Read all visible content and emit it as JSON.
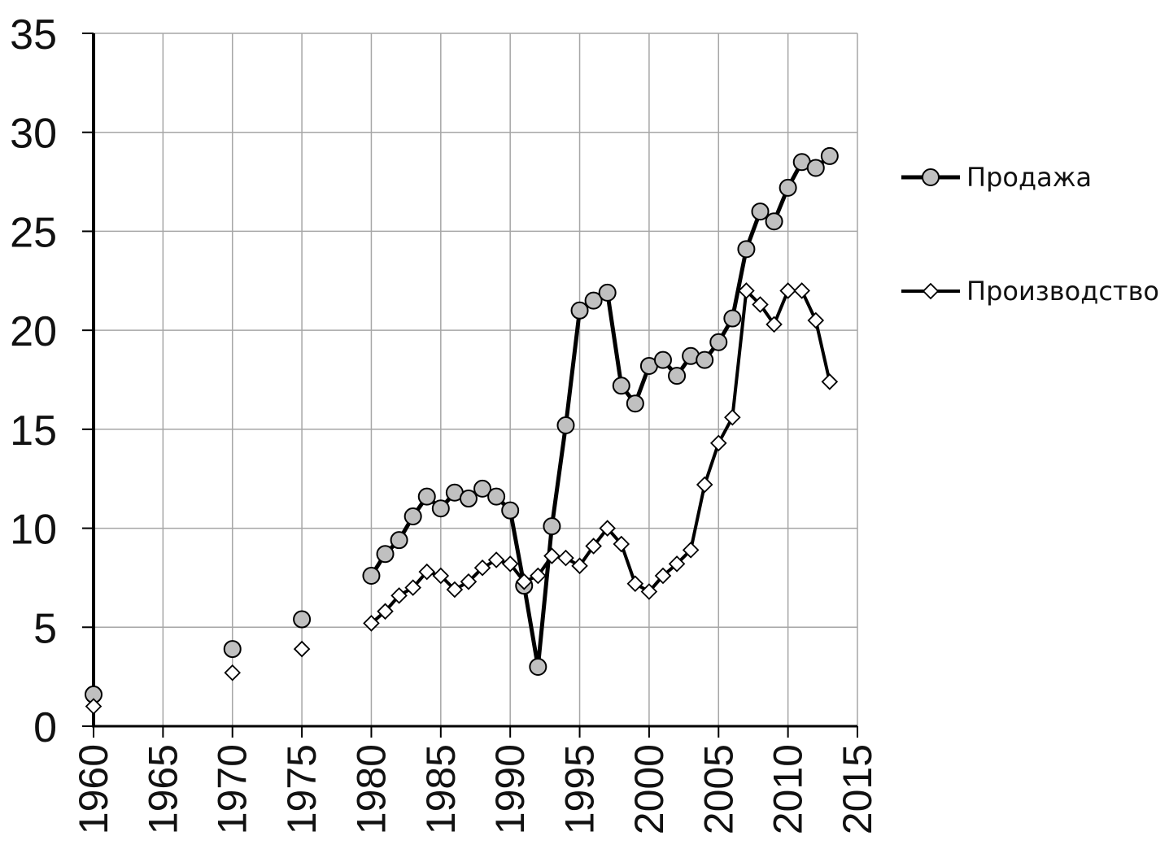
{
  "chart_data": {
    "type": "line",
    "title": "",
    "xlabel": "",
    "ylabel": "",
    "xlim": [
      1960,
      2015
    ],
    "ylim": [
      0,
      35
    ],
    "xticks": [
      1960,
      1965,
      1970,
      1975,
      1980,
      1985,
      1990,
      1995,
      2000,
      2005,
      2010,
      2015
    ],
    "yticks": [
      0,
      5,
      10,
      15,
      20,
      25,
      30,
      35
    ],
    "grid": true,
    "legend_position": "right",
    "series": [
      {
        "name": "Продажа",
        "marker": "circle",
        "marker_fill": "#c0c0c0",
        "line_color": "#000000",
        "points": [
          {
            "x": 1960,
            "y": 1.6
          },
          {
            "x": 1970,
            "y": 3.9
          },
          {
            "x": 1975,
            "y": 5.4
          },
          {
            "x": 1980,
            "y": 7.6
          },
          {
            "x": 1981,
            "y": 8.7
          },
          {
            "x": 1982,
            "y": 9.4
          },
          {
            "x": 1983,
            "y": 10.6
          },
          {
            "x": 1984,
            "y": 11.6
          },
          {
            "x": 1985,
            "y": 11.0
          },
          {
            "x": 1986,
            "y": 11.8
          },
          {
            "x": 1987,
            "y": 11.5
          },
          {
            "x": 1988,
            "y": 12.0
          },
          {
            "x": 1989,
            "y": 11.6
          },
          {
            "x": 1990,
            "y": 10.9
          },
          {
            "x": 1991,
            "y": 7.1
          },
          {
            "x": 1992,
            "y": 3.0
          },
          {
            "x": 1993,
            "y": 10.1
          },
          {
            "x": 1994,
            "y": 15.2
          },
          {
            "x": 1995,
            "y": 21.0
          },
          {
            "x": 1996,
            "y": 21.5
          },
          {
            "x": 1997,
            "y": 21.9
          },
          {
            "x": 1998,
            "y": 17.2
          },
          {
            "x": 1999,
            "y": 16.3
          },
          {
            "x": 2000,
            "y": 18.2
          },
          {
            "x": 2001,
            "y": 18.5
          },
          {
            "x": 2002,
            "y": 17.7
          },
          {
            "x": 2003,
            "y": 18.7
          },
          {
            "x": 2004,
            "y": 18.5
          },
          {
            "x": 2005,
            "y": 19.4
          },
          {
            "x": 2006,
            "y": 20.6
          },
          {
            "x": 2007,
            "y": 24.1
          },
          {
            "x": 2008,
            "y": 26.0
          },
          {
            "x": 2009,
            "y": 25.5
          },
          {
            "x": 2010,
            "y": 27.2
          },
          {
            "x": 2011,
            "y": 28.5
          },
          {
            "x": 2012,
            "y": 28.2
          },
          {
            "x": 2013,
            "y": 28.8
          }
        ]
      },
      {
        "name": "Производство",
        "marker": "diamond",
        "marker_fill": "#ffffff",
        "line_color": "#000000",
        "points": [
          {
            "x": 1960,
            "y": 1.0
          },
          {
            "x": 1970,
            "y": 2.7
          },
          {
            "x": 1975,
            "y": 3.9
          },
          {
            "x": 1980,
            "y": 5.2
          },
          {
            "x": 1981,
            "y": 5.8
          },
          {
            "x": 1982,
            "y": 6.6
          },
          {
            "x": 1983,
            "y": 7.0
          },
          {
            "x": 1984,
            "y": 7.8
          },
          {
            "x": 1985,
            "y": 7.6
          },
          {
            "x": 1986,
            "y": 6.9
          },
          {
            "x": 1987,
            "y": 7.3
          },
          {
            "x": 1988,
            "y": 8.0
          },
          {
            "x": 1989,
            "y": 8.4
          },
          {
            "x": 1990,
            "y": 8.2
          },
          {
            "x": 1991,
            "y": 7.3
          },
          {
            "x": 1992,
            "y": 7.6
          },
          {
            "x": 1993,
            "y": 8.6
          },
          {
            "x": 1994,
            "y": 8.5
          },
          {
            "x": 1995,
            "y": 8.1
          },
          {
            "x": 1996,
            "y": 9.1
          },
          {
            "x": 1997,
            "y": 10.0
          },
          {
            "x": 1998,
            "y": 9.2
          },
          {
            "x": 1999,
            "y": 7.2
          },
          {
            "x": 2000,
            "y": 6.8
          },
          {
            "x": 2001,
            "y": 7.6
          },
          {
            "x": 2002,
            "y": 8.2
          },
          {
            "x": 2003,
            "y": 8.9
          },
          {
            "x": 2004,
            "y": 12.2
          },
          {
            "x": 2005,
            "y": 14.3
          },
          {
            "x": 2006,
            "y": 15.6
          },
          {
            "x": 2007,
            "y": 22.0
          },
          {
            "x": 2008,
            "y": 21.3
          },
          {
            "x": 2009,
            "y": 20.3
          },
          {
            "x": 2010,
            "y": 22.0
          },
          {
            "x": 2011,
            "y": 22.0
          },
          {
            "x": 2012,
            "y": 20.5
          },
          {
            "x": 2013,
            "y": 17.4
          }
        ]
      }
    ]
  }
}
